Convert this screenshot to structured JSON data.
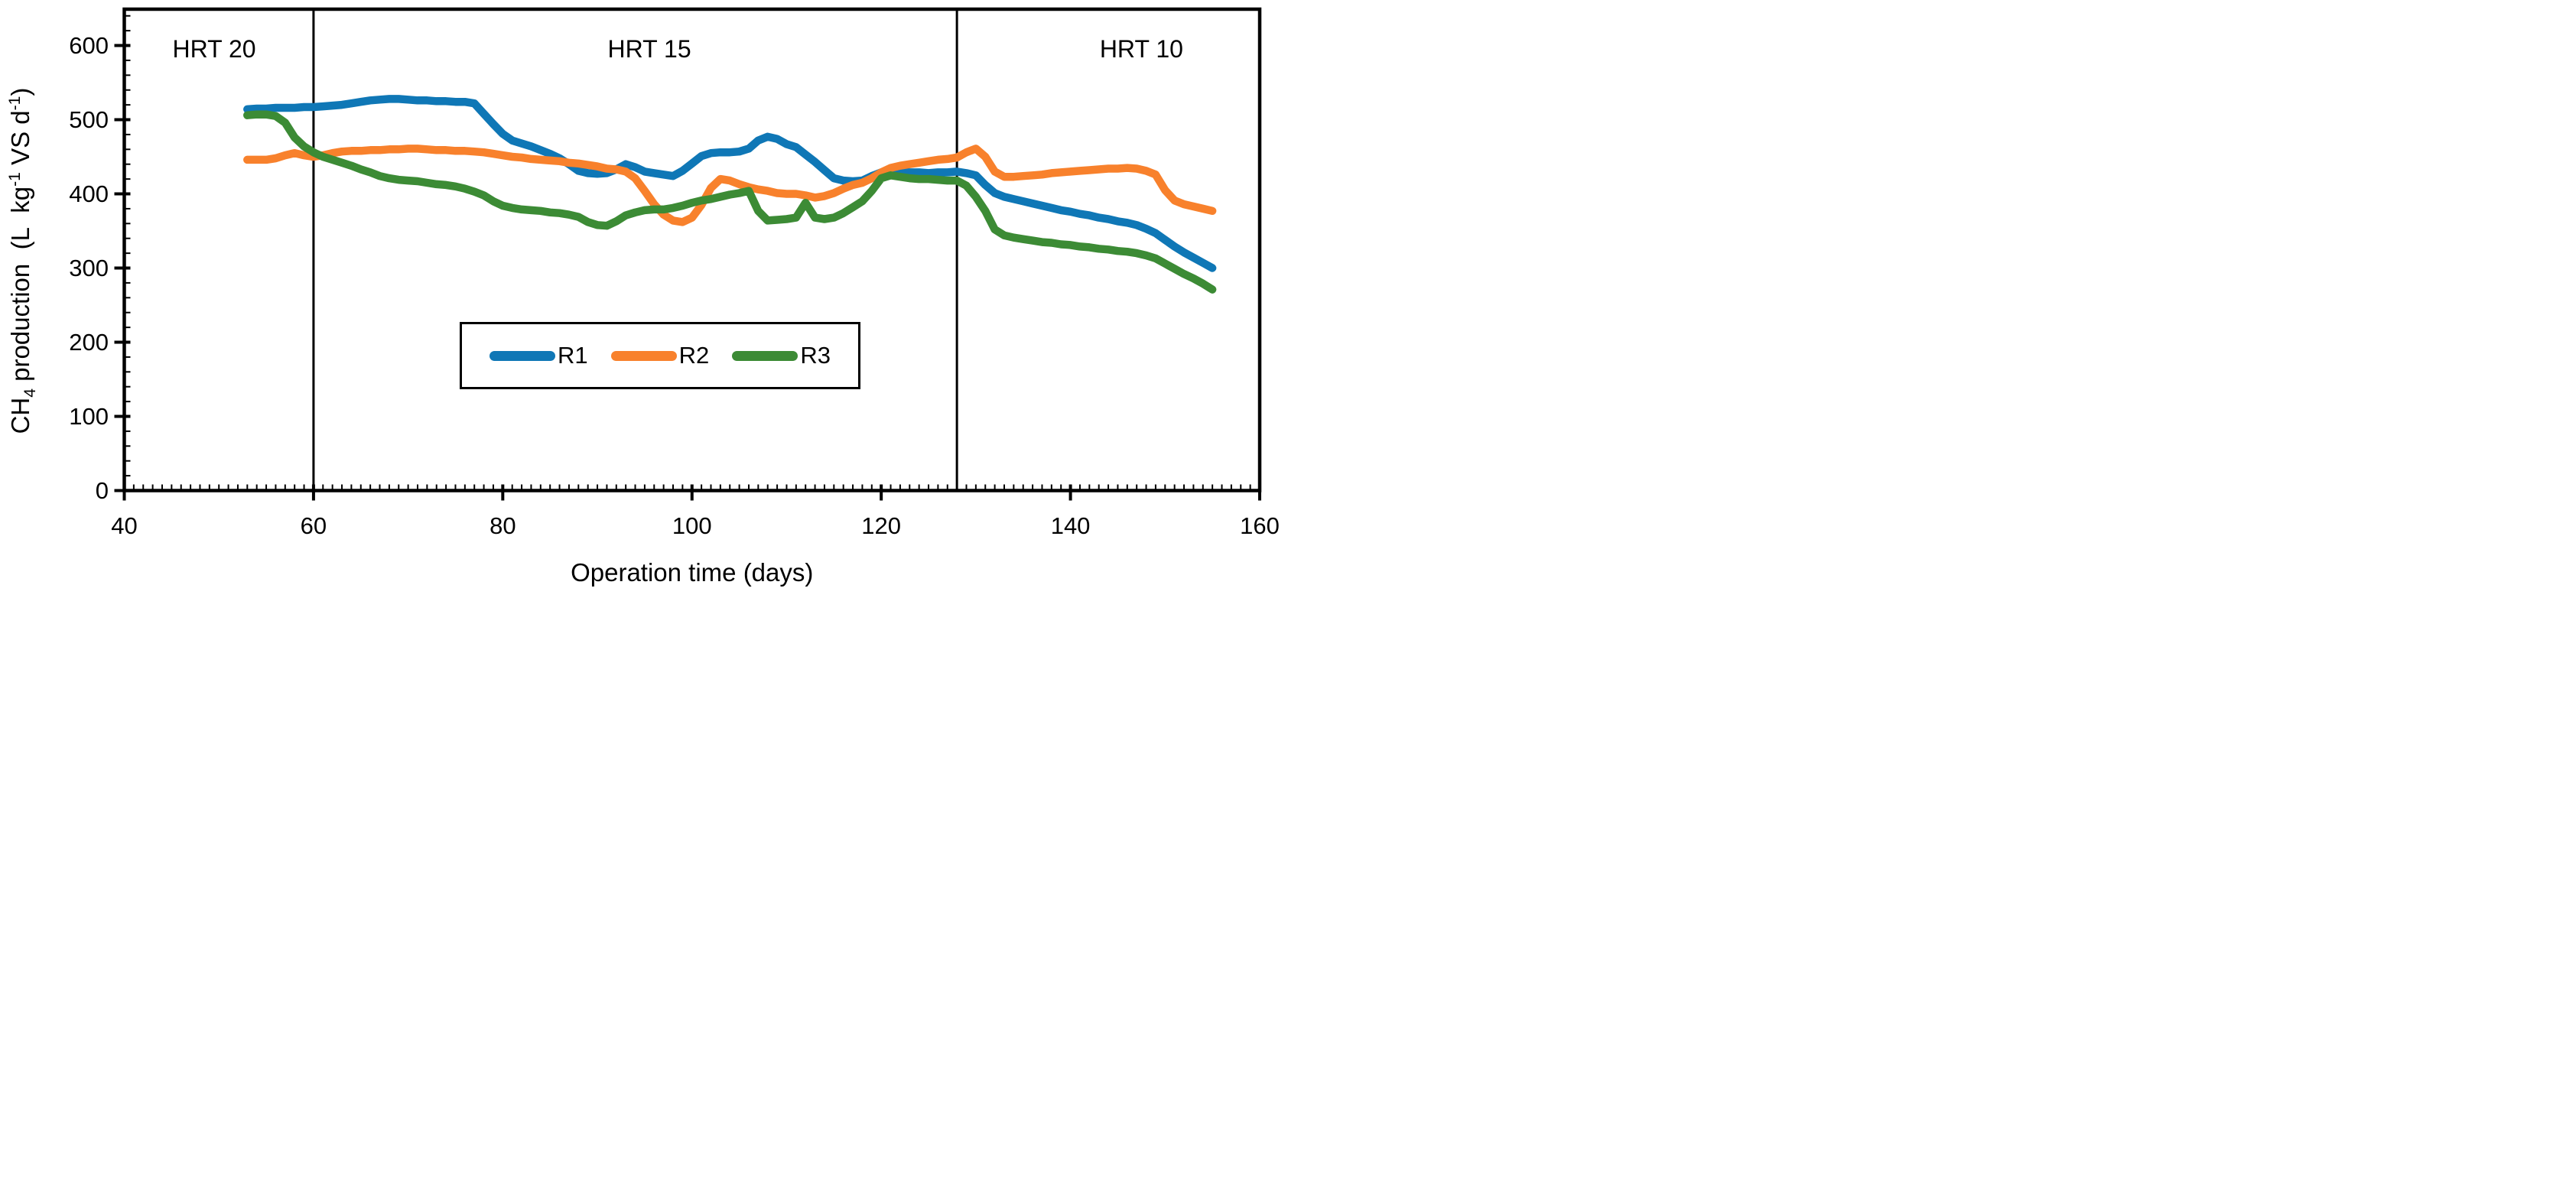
{
  "chart_data": {
    "type": "line",
    "title": "",
    "xlabel": "Operation time (days)",
    "ylabel_plain": "CH4 production (L kg-1 VS d-1)",
    "ylabel_rich": [
      {
        "t": "CH",
        "style": ""
      },
      {
        "t": "4",
        "style": "sub"
      },
      {
        "t": " production  (L  kg",
        "style": ""
      },
      {
        "t": "-1",
        "style": "sup"
      },
      {
        "t": " VS d",
        "style": ""
      },
      {
        "t": "-1",
        "style": "sup"
      },
      {
        "t": ")",
        "style": ""
      }
    ],
    "xlim": [
      40,
      160
    ],
    "ylim": [
      0,
      649
    ],
    "xticks": [
      40,
      60,
      80,
      100,
      120,
      140,
      160
    ],
    "yticks": [
      0,
      100,
      200,
      300,
      400,
      500,
      600
    ],
    "x_minor_step": 1,
    "y_minor_step": 20,
    "grid": false,
    "legend_position": "boxed, centered below middle of plot",
    "region_dividers_x": [
      60,
      128
    ],
    "annotations": [
      {
        "text": "HRT 20",
        "x": 49.5,
        "y": 595
      },
      {
        "text": "HRT 15",
        "x": 95.5,
        "y": 595
      },
      {
        "text": "HRT 10",
        "x": 147.5,
        "y": 595
      }
    ],
    "series": [
      {
        "name": "R1",
        "color": "#0f77b6",
        "points": [
          [
            53,
            514
          ],
          [
            54,
            515
          ],
          [
            55,
            515
          ],
          [
            56,
            516
          ],
          [
            57,
            516
          ],
          [
            58,
            516
          ],
          [
            59,
            517
          ],
          [
            60,
            517
          ],
          [
            61,
            518
          ],
          [
            62,
            519
          ],
          [
            63,
            520
          ],
          [
            64,
            522
          ],
          [
            65,
            524
          ],
          [
            66,
            526
          ],
          [
            67,
            527
          ],
          [
            68,
            528
          ],
          [
            69,
            528
          ],
          [
            70,
            527
          ],
          [
            71,
            526
          ],
          [
            72,
            526
          ],
          [
            73,
            525
          ],
          [
            74,
            525
          ],
          [
            75,
            524
          ],
          [
            76,
            524
          ],
          [
            77,
            522
          ],
          [
            78,
            508
          ],
          [
            79,
            494
          ],
          [
            80,
            481
          ],
          [
            81,
            472
          ],
          [
            82,
            468
          ],
          [
            83,
            464
          ],
          [
            84,
            459
          ],
          [
            85,
            454
          ],
          [
            86,
            448
          ],
          [
            87,
            440
          ],
          [
            88,
            431
          ],
          [
            89,
            428
          ],
          [
            90,
            427
          ],
          [
            91,
            428
          ],
          [
            92,
            433
          ],
          [
            93,
            440
          ],
          [
            94,
            436
          ],
          [
            95,
            430
          ],
          [
            96,
            428
          ],
          [
            97,
            426
          ],
          [
            98,
            424
          ],
          [
            99,
            431
          ],
          [
            100,
            441
          ],
          [
            101,
            451
          ],
          [
            102,
            455
          ],
          [
            103,
            456
          ],
          [
            104,
            456
          ],
          [
            105,
            457
          ],
          [
            106,
            461
          ],
          [
            107,
            472
          ],
          [
            108,
            477
          ],
          [
            109,
            474
          ],
          [
            110,
            467
          ],
          [
            111,
            463
          ],
          [
            112,
            453
          ],
          [
            113,
            443
          ],
          [
            114,
            432
          ],
          [
            115,
            421
          ],
          [
            116,
            418
          ],
          [
            117,
            417
          ],
          [
            118,
            418
          ],
          [
            119,
            424
          ],
          [
            120,
            429
          ],
          [
            121,
            431
          ],
          [
            122,
            430
          ],
          [
            123,
            429
          ],
          [
            124,
            429
          ],
          [
            125,
            428
          ],
          [
            126,
            429
          ],
          [
            127,
            429
          ],
          [
            128,
            430
          ],
          [
            129,
            428
          ],
          [
            130,
            425
          ],
          [
            131,
            412
          ],
          [
            132,
            401
          ],
          [
            133,
            396
          ],
          [
            134,
            393
          ],
          [
            135,
            390
          ],
          [
            136,
            387
          ],
          [
            137,
            384
          ],
          [
            138,
            381
          ],
          [
            139,
            378
          ],
          [
            140,
            376
          ],
          [
            141,
            373
          ],
          [
            142,
            371
          ],
          [
            143,
            368
          ],
          [
            144,
            366
          ],
          [
            145,
            363
          ],
          [
            146,
            361
          ],
          [
            147,
            358
          ],
          [
            148,
            353
          ],
          [
            149,
            347
          ],
          [
            150,
            338
          ],
          [
            151,
            329
          ],
          [
            152,
            321
          ],
          [
            153,
            314
          ],
          [
            154,
            307
          ],
          [
            155,
            300
          ]
        ]
      },
      {
        "name": "R2",
        "color": "#f8812c",
        "points": [
          [
            53,
            446
          ],
          [
            54,
            446
          ],
          [
            55,
            446
          ],
          [
            56,
            448
          ],
          [
            57,
            452
          ],
          [
            58,
            455
          ],
          [
            59,
            452
          ],
          [
            60,
            450
          ],
          [
            61,
            452
          ],
          [
            62,
            455
          ],
          [
            63,
            457
          ],
          [
            64,
            458
          ],
          [
            65,
            458
          ],
          [
            66,
            459
          ],
          [
            67,
            459
          ],
          [
            68,
            460
          ],
          [
            69,
            460
          ],
          [
            70,
            461
          ],
          [
            71,
            461
          ],
          [
            72,
            460
          ],
          [
            73,
            459
          ],
          [
            74,
            459
          ],
          [
            75,
            458
          ],
          [
            76,
            458
          ],
          [
            77,
            457
          ],
          [
            78,
            456
          ],
          [
            79,
            454
          ],
          [
            80,
            452
          ],
          [
            81,
            450
          ],
          [
            82,
            449
          ],
          [
            83,
            447
          ],
          [
            84,
            446
          ],
          [
            85,
            445
          ],
          [
            86,
            444
          ],
          [
            87,
            442
          ],
          [
            88,
            441
          ],
          [
            89,
            439
          ],
          [
            90,
            437
          ],
          [
            91,
            434
          ],
          [
            92,
            433
          ],
          [
            93,
            430
          ],
          [
            94,
            421
          ],
          [
            95,
            404
          ],
          [
            96,
            386
          ],
          [
            97,
            372
          ],
          [
            98,
            364
          ],
          [
            99,
            362
          ],
          [
            100,
            368
          ],
          [
            101,
            385
          ],
          [
            102,
            408
          ],
          [
            103,
            420
          ],
          [
            104,
            418
          ],
          [
            105,
            413
          ],
          [
            106,
            409
          ],
          [
            107,
            406
          ],
          [
            108,
            404
          ],
          [
            109,
            401
          ],
          [
            110,
            400
          ],
          [
            111,
            400
          ],
          [
            112,
            398
          ],
          [
            113,
            395
          ],
          [
            114,
            397
          ],
          [
            115,
            401
          ],
          [
            116,
            407
          ],
          [
            117,
            412
          ],
          [
            118,
            415
          ],
          [
            119,
            421
          ],
          [
            120,
            429
          ],
          [
            121,
            435
          ],
          [
            122,
            438
          ],
          [
            123,
            440
          ],
          [
            124,
            442
          ],
          [
            125,
            444
          ],
          [
            126,
            446
          ],
          [
            127,
            447
          ],
          [
            128,
            449
          ],
          [
            129,
            456
          ],
          [
            130,
            461
          ],
          [
            131,
            450
          ],
          [
            132,
            430
          ],
          [
            133,
            423
          ],
          [
            134,
            423
          ],
          [
            135,
            424
          ],
          [
            136,
            425
          ],
          [
            137,
            426
          ],
          [
            138,
            428
          ],
          [
            139,
            429
          ],
          [
            140,
            430
          ],
          [
            141,
            431
          ],
          [
            142,
            432
          ],
          [
            143,
            433
          ],
          [
            144,
            434
          ],
          [
            145,
            434
          ],
          [
            146,
            435
          ],
          [
            147,
            434
          ],
          [
            148,
            431
          ],
          [
            149,
            426
          ],
          [
            150,
            405
          ],
          [
            151,
            391
          ],
          [
            152,
            386
          ],
          [
            153,
            383
          ],
          [
            154,
            380
          ],
          [
            155,
            377
          ]
        ]
      },
      {
        "name": "R3",
        "color": "#3c8b35",
        "points": [
          [
            53,
            506
          ],
          [
            54,
            507
          ],
          [
            55,
            507
          ],
          [
            56,
            505
          ],
          [
            57,
            496
          ],
          [
            58,
            476
          ],
          [
            59,
            464
          ],
          [
            60,
            456
          ],
          [
            61,
            450
          ],
          [
            62,
            446
          ],
          [
            63,
            442
          ],
          [
            64,
            438
          ],
          [
            65,
            433
          ],
          [
            66,
            429
          ],
          [
            67,
            424
          ],
          [
            68,
            421
          ],
          [
            69,
            419
          ],
          [
            70,
            418
          ],
          [
            71,
            417
          ],
          [
            72,
            415
          ],
          [
            73,
            413
          ],
          [
            74,
            412
          ],
          [
            75,
            410
          ],
          [
            76,
            407
          ],
          [
            77,
            403
          ],
          [
            78,
            398
          ],
          [
            79,
            390
          ],
          [
            80,
            384
          ],
          [
            81,
            381
          ],
          [
            82,
            379
          ],
          [
            83,
            378
          ],
          [
            84,
            377
          ],
          [
            85,
            375
          ],
          [
            86,
            374
          ],
          [
            87,
            372
          ],
          [
            88,
            369
          ],
          [
            89,
            362
          ],
          [
            90,
            358
          ],
          [
            91,
            357
          ],
          [
            92,
            363
          ],
          [
            93,
            371
          ],
          [
            94,
            375
          ],
          [
            95,
            378
          ],
          [
            96,
            379
          ],
          [
            97,
            379
          ],
          [
            98,
            381
          ],
          [
            99,
            384
          ],
          [
            100,
            388
          ],
          [
            101,
            391
          ],
          [
            102,
            393
          ],
          [
            103,
            396
          ],
          [
            104,
            399
          ],
          [
            105,
            401
          ],
          [
            106,
            404
          ],
          [
            107,
            377
          ],
          [
            108,
            364
          ],
          [
            109,
            365
          ],
          [
            110,
            366
          ],
          [
            111,
            368
          ],
          [
            112,
            388
          ],
          [
            113,
            368
          ],
          [
            114,
            366
          ],
          [
            115,
            368
          ],
          [
            116,
            374
          ],
          [
            117,
            382
          ],
          [
            118,
            390
          ],
          [
            119,
            404
          ],
          [
            120,
            421
          ],
          [
            121,
            425
          ],
          [
            122,
            423
          ],
          [
            123,
            421
          ],
          [
            124,
            420
          ],
          [
            125,
            420
          ],
          [
            126,
            419
          ],
          [
            127,
            418
          ],
          [
            128,
            418
          ],
          [
            129,
            411
          ],
          [
            130,
            396
          ],
          [
            131,
            377
          ],
          [
            132,
            352
          ],
          [
            133,
            344
          ],
          [
            134,
            341
          ],
          [
            135,
            339
          ],
          [
            136,
            337
          ],
          [
            137,
            335
          ],
          [
            138,
            334
          ],
          [
            139,
            332
          ],
          [
            140,
            331
          ],
          [
            141,
            329
          ],
          [
            142,
            328
          ],
          [
            143,
            326
          ],
          [
            144,
            325
          ],
          [
            145,
            323
          ],
          [
            146,
            322
          ],
          [
            147,
            320
          ],
          [
            148,
            317
          ],
          [
            149,
            313
          ],
          [
            150,
            306
          ],
          [
            151,
            299
          ],
          [
            152,
            292
          ],
          [
            153,
            286
          ],
          [
            154,
            279
          ],
          [
            155,
            271
          ]
        ]
      }
    ]
  }
}
